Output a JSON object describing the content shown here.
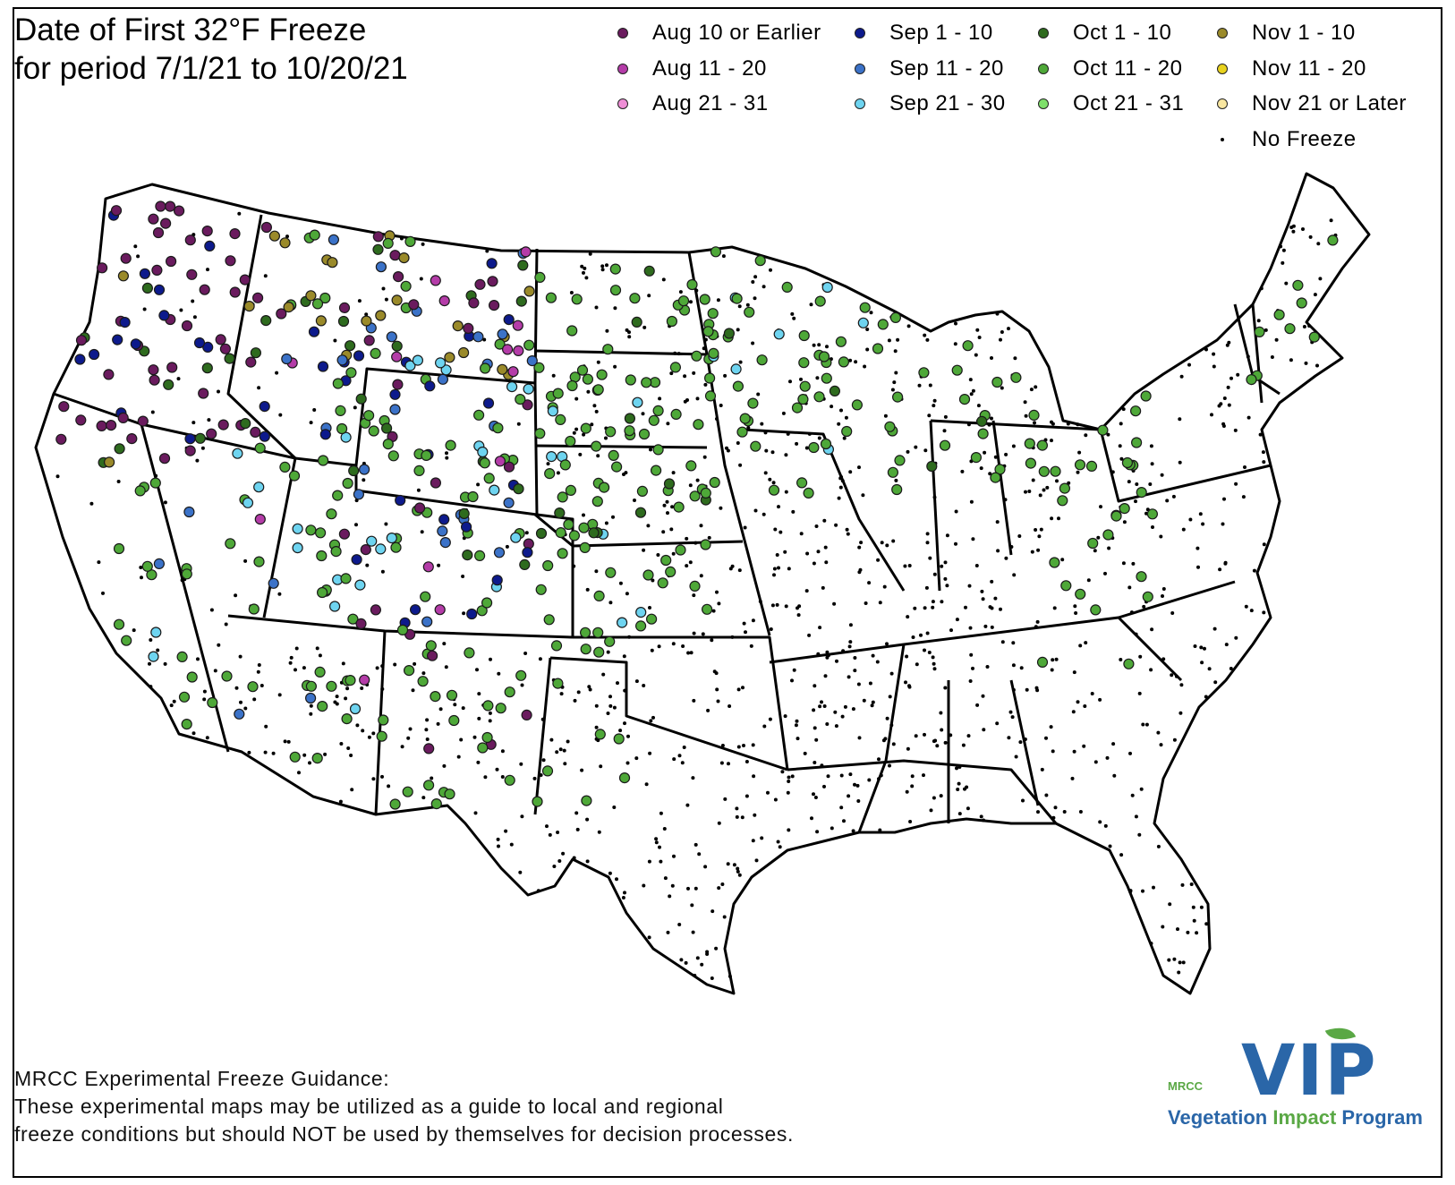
{
  "title": {
    "line1": "Date of First 32°F Freeze",
    "line2": "for period 7/1/21 to 10/20/21"
  },
  "legend": [
    {
      "label": "Aug 10 or Earlier",
      "color": "#6a1b5e"
    },
    {
      "label": "Sep 1 - 10",
      "color": "#0d1a8c"
    },
    {
      "label": "Oct 1 - 10",
      "color": "#2e6b1e"
    },
    {
      "label": "Nov 1 - 10",
      "color": "#9a8a2a"
    },
    {
      "label": "Aug 11 - 20",
      "color": "#b43ca8"
    },
    {
      "label": "Sep 11 - 20",
      "color": "#3b72c8"
    },
    {
      "label": "Oct 11 - 20",
      "color": "#4ea838"
    },
    {
      "label": "Nov 11 - 20",
      "color": "#e8d21e"
    },
    {
      "label": "Aug 21 - 31",
      "color": "#ee8ed6"
    },
    {
      "label": "Sep 21 - 30",
      "color": "#6ed4f0"
    },
    {
      "label": "Oct 21 - 31",
      "color": "#7ee06a"
    },
    {
      "label": "Nov 21 or Later",
      "color": "#f8e6a0"
    },
    {
      "label": "No Freeze",
      "color": "#000000",
      "small": true
    }
  ],
  "disclaimer": {
    "line1": "MRCC Experimental Freeze Guidance:",
    "line2": "These experimental maps may be utilized as a guide to local and regional",
    "line3": "freeze conditions but should NOT be used by themselves for decision processes."
  },
  "logo": {
    "acronym": "VIP",
    "org": "MRCC",
    "name_part1": "Vegetation",
    "name_part2": "Impact",
    "name_part3": "Program"
  }
}
